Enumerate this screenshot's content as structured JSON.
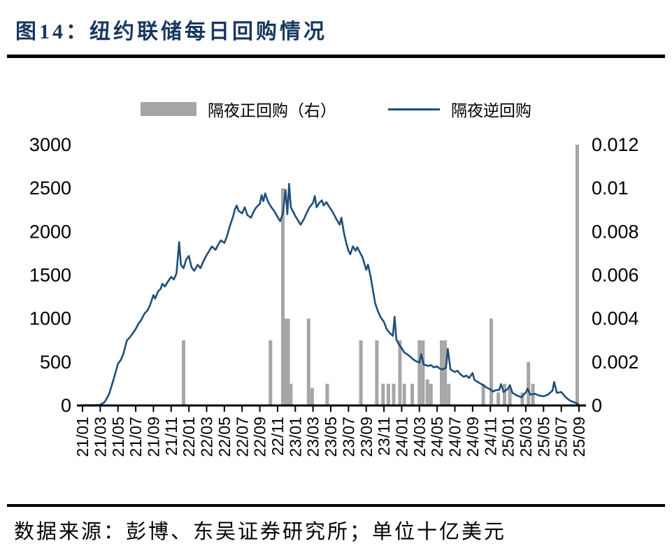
{
  "figure": {
    "title": "图14：纽约联储每日回购情况",
    "source_note": "数据来源：彭博、东吴证券研究所；单位十亿美元"
  },
  "legend": [
    {
      "type": "bar",
      "label": "隔夜正回购（右）",
      "color": "#A6A6A6"
    },
    {
      "type": "line",
      "label": "隔夜逆回购",
      "color": "#1F4E79"
    }
  ],
  "chart_data": {
    "type": "line+bar",
    "title": "纽约联储每日回购情况",
    "xlabel": "",
    "ylabel": "",
    "legend_position": "top",
    "grid": false,
    "x_unit": "months since 2021-01",
    "x_tick_labels": [
      "21/01",
      "21/03",
      "21/05",
      "21/07",
      "21/09",
      "21/11",
      "22/01",
      "22/03",
      "22/05",
      "22/07",
      "22/09",
      "22/11",
      "23/01",
      "23/03",
      "23/05",
      "23/07",
      "23/09",
      "23/11",
      "24/01",
      "24/03",
      "24/05",
      "24/07",
      "24/09",
      "24/11",
      "25/01",
      "25/03",
      "25/05",
      "25/07",
      "25/09"
    ],
    "x_tick_positions": [
      0,
      2,
      4,
      6,
      8,
      10,
      12,
      14,
      16,
      18,
      20,
      22,
      24,
      26,
      28,
      30,
      32,
      34,
      36,
      38,
      40,
      42,
      44,
      46,
      48,
      50,
      52,
      54,
      56
    ],
    "left_axis": {
      "series": "隔夜逆回购",
      "min": 0,
      "max": 3000,
      "ticks": [
        0,
        500,
        1000,
        1500,
        2000,
        2500,
        3000
      ]
    },
    "right_axis": {
      "series": "隔夜正回购（右）",
      "min": 0,
      "max": 0.012,
      "ticks": [
        "0",
        "0.002",
        "0.004",
        "0.006",
        "0.008",
        "0.01",
        "0.012"
      ]
    },
    "line_series": {
      "name": "隔夜逆回购",
      "color": "#1F4E79",
      "points": [
        [
          0,
          3
        ],
        [
          0.5,
          3
        ],
        [
          1,
          4
        ],
        [
          1.5,
          5
        ],
        [
          2,
          8
        ],
        [
          2.5,
          40
        ],
        [
          3,
          130
        ],
        [
          3.5,
          300
        ],
        [
          4,
          480
        ],
        [
          4.3,
          520
        ],
        [
          4.6,
          590
        ],
        [
          5,
          748
        ],
        [
          5.3,
          780
        ],
        [
          5.6,
          820
        ],
        [
          6,
          880
        ],
        [
          6.3,
          940
        ],
        [
          6.6,
          980
        ],
        [
          7,
          1060
        ],
        [
          7.3,
          1090
        ],
        [
          7.6,
          1150
        ],
        [
          8,
          1270
        ],
        [
          8.2,
          1230
        ],
        [
          8.5,
          1310
        ],
        [
          8.8,
          1340
        ],
        [
          9,
          1400
        ],
        [
          9.3,
          1370
        ],
        [
          9.6,
          1420
        ],
        [
          10,
          1480
        ],
        [
          10.3,
          1450
        ],
        [
          10.6,
          1520
        ],
        [
          10.9,
          1880
        ],
        [
          11.1,
          1620
        ],
        [
          11.4,
          1580
        ],
        [
          11.7,
          1680
        ],
        [
          12,
          1720
        ],
        [
          12.3,
          1590
        ],
        [
          12.6,
          1550
        ],
        [
          13,
          1620
        ],
        [
          13.3,
          1580
        ],
        [
          13.6,
          1650
        ],
        [
          14,
          1730
        ],
        [
          14.3,
          1780
        ],
        [
          14.6,
          1830
        ],
        [
          15,
          1790
        ],
        [
          15.3,
          1850
        ],
        [
          15.6,
          1900
        ],
        [
          16,
          1870
        ],
        [
          16.3,
          1950
        ],
        [
          16.6,
          2060
        ],
        [
          17,
          2180
        ],
        [
          17.2,
          2260
        ],
        [
          17.4,
          2300
        ],
        [
          17.6,
          2240
        ],
        [
          18,
          2210
        ],
        [
          18.3,
          2280
        ],
        [
          18.6,
          2190
        ],
        [
          19,
          2160
        ],
        [
          19.3,
          2230
        ],
        [
          19.6,
          2280
        ],
        [
          20,
          2320
        ],
        [
          20.2,
          2420
        ],
        [
          20.4,
          2350
        ],
        [
          20.6,
          2440
        ],
        [
          20.8,
          2380
        ],
        [
          21,
          2330
        ],
        [
          21.3,
          2280
        ],
        [
          21.6,
          2240
        ],
        [
          22,
          2170
        ],
        [
          22.3,
          2120
        ],
        [
          22.6,
          2210
        ],
        [
          22.9,
          2480
        ],
        [
          23.1,
          2200
        ],
        [
          23.3,
          2550
        ],
        [
          23.5,
          2280
        ],
        [
          23.8,
          2220
        ],
        [
          24,
          2180
        ],
        [
          24.3,
          2130
        ],
        [
          24.6,
          2080
        ],
        [
          25,
          2150
        ],
        [
          25.3,
          2220
        ],
        [
          25.6,
          2280
        ],
        [
          26,
          2330
        ],
        [
          26.2,
          2410
        ],
        [
          26.4,
          2280
        ],
        [
          26.7,
          2330
        ],
        [
          27,
          2360
        ],
        [
          27.2,
          2300
        ],
        [
          27.5,
          2340
        ],
        [
          27.8,
          2290
        ],
        [
          28,
          2260
        ],
        [
          28.3,
          2210
        ],
        [
          28.6,
          2150
        ],
        [
          29,
          2080
        ],
        [
          29.2,
          2160
        ],
        [
          29.5,
          1980
        ],
        [
          29.8,
          1850
        ],
        [
          30,
          1780
        ],
        [
          30.2,
          1740
        ],
        [
          30.5,
          1830
        ],
        [
          30.8,
          1780
        ],
        [
          31,
          1820
        ],
        [
          31.3,
          1760
        ],
        [
          31.6,
          1700
        ],
        [
          32,
          1560
        ],
        [
          32.2,
          1620
        ],
        [
          32.5,
          1480
        ],
        [
          32.8,
          1300
        ],
        [
          33,
          1180
        ],
        [
          33.3,
          1090
        ],
        [
          33.6,
          1020
        ],
        [
          34,
          960
        ],
        [
          34.3,
          880
        ],
        [
          34.6,
          840
        ],
        [
          35,
          800
        ],
        [
          35.2,
          1020
        ],
        [
          35.4,
          760
        ],
        [
          35.7,
          700
        ],
        [
          36,
          660
        ],
        [
          36.3,
          610
        ],
        [
          36.6,
          590
        ],
        [
          37,
          560
        ],
        [
          37.3,
          530
        ],
        [
          37.6,
          510
        ],
        [
          38,
          495
        ],
        [
          38.2,
          590
        ],
        [
          38.5,
          470
        ],
        [
          39,
          455
        ],
        [
          39.3,
          465
        ],
        [
          39.6,
          440
        ],
        [
          40,
          450
        ],
        [
          40.3,
          425
        ],
        [
          40.6,
          415
        ],
        [
          41,
          435
        ],
        [
          41.2,
          650
        ],
        [
          41.5,
          415
        ],
        [
          42,
          385
        ],
        [
          42.3,
          400
        ],
        [
          42.6,
          360
        ],
        [
          43,
          330
        ],
        [
          43.3,
          345
        ],
        [
          43.6,
          315
        ],
        [
          44,
          375
        ],
        [
          44.2,
          295
        ],
        [
          44.5,
          275
        ],
        [
          45,
          245
        ],
        [
          45.3,
          225
        ],
        [
          45.6,
          205
        ],
        [
          46,
          185
        ],
        [
          46.3,
          160
        ],
        [
          46.6,
          175
        ],
        [
          47,
          180
        ],
        [
          47.2,
          245
        ],
        [
          47.5,
          155
        ],
        [
          48,
          195
        ],
        [
          48.2,
          235
        ],
        [
          48.5,
          145
        ],
        [
          49,
          115
        ],
        [
          49.5,
          95
        ],
        [
          50,
          150
        ],
        [
          50.2,
          195
        ],
        [
          50.5,
          125
        ],
        [
          51,
          135
        ],
        [
          51.5,
          115
        ],
        [
          52,
          105
        ],
        [
          52.5,
          125
        ],
        [
          53,
          170
        ],
        [
          53.2,
          270
        ],
        [
          53.5,
          145
        ],
        [
          54,
          155
        ],
        [
          54.3,
          120
        ],
        [
          54.6,
          85
        ],
        [
          55,
          55
        ],
        [
          55.5,
          35
        ],
        [
          56,
          12
        ]
      ]
    },
    "bar_series": {
      "name": "隔夜正回购（右）",
      "color": "#A6A6A6",
      "points": [
        [
          11.4,
          0.003
        ],
        [
          21.2,
          0.003
        ],
        [
          22.6,
          0.01
        ],
        [
          22.9,
          0.004
        ],
        [
          23.2,
          0.004
        ],
        [
          23.5,
          0.001
        ],
        [
          25.5,
          0.004
        ],
        [
          25.9,
          0.0008
        ],
        [
          27.6,
          0.001
        ],
        [
          31.4,
          0.003
        ],
        [
          33.2,
          0.003
        ],
        [
          33.9,
          0.001
        ],
        [
          34.5,
          0.001
        ],
        [
          35.1,
          0.001
        ],
        [
          35.8,
          0.003
        ],
        [
          36.3,
          0.001
        ],
        [
          37.2,
          0.001
        ],
        [
          38.0,
          0.003
        ],
        [
          38.4,
          0.003
        ],
        [
          38.9,
          0.0012
        ],
        [
          39.3,
          0.001
        ],
        [
          40.5,
          0.003
        ],
        [
          40.9,
          0.003
        ],
        [
          41.3,
          0.001
        ],
        [
          45.2,
          0.001
        ],
        [
          46.1,
          0.004
        ],
        [
          46.9,
          0.0006
        ],
        [
          47.6,
          0.001
        ],
        [
          48.2,
          0.0008
        ],
        [
          49.6,
          0.0006
        ],
        [
          50.3,
          0.002
        ],
        [
          50.8,
          0.001
        ],
        [
          55.8,
          0.012
        ]
      ]
    }
  }
}
